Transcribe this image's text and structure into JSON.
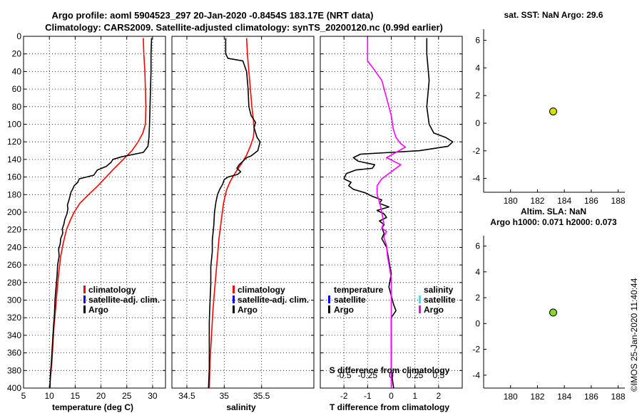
{
  "title_line1": "Argo profile: aoml 5904523_297 20-Jan-2020 -0.8454S 183.17E (NRT data)",
  "title_line2": "Climatology: CARS2009. Satellite-adjusted climatology: synTS_20200120.nc (0.99d earlier)",
  "watermark": "©IMOS 25-Jan-2020 11:40:44",
  "colors": {
    "climatology": "#ff0000",
    "satellite_adj": "#0000ff",
    "argo": "#000000",
    "salinity_diff": "#ff00ff",
    "satellite_salinity": "#00ffff",
    "sst_marker": "#d4e000",
    "sla_marker": "#88d830"
  },
  "chart_data": [
    {
      "id": "temperature",
      "type": "line",
      "xlabel": "temperature (deg C)",
      "xlim": [
        5,
        32.5
      ],
      "xticks": [
        5,
        10,
        15,
        20,
        25,
        30
      ],
      "ylim": [
        400,
        0
      ],
      "yticks": [
        0,
        20,
        40,
        60,
        80,
        100,
        120,
        140,
        160,
        180,
        200,
        220,
        240,
        260,
        280,
        300,
        320,
        340,
        360,
        380,
        400
      ],
      "legend": [
        "climatology",
        "satellite-adj. clim.",
        "Argo"
      ],
      "series": [
        {
          "name": "climatology",
          "color": "#ff0000",
          "points": [
            [
              28.2,
              2
            ],
            [
              28.3,
              20
            ],
            [
              28.5,
              40
            ],
            [
              28.6,
              60
            ],
            [
              28.7,
              80
            ],
            [
              28.6,
              100
            ],
            [
              28.1,
              110
            ],
            [
              27.2,
              120
            ],
            [
              26.0,
              130
            ],
            [
              24.3,
              140
            ],
            [
              22.6,
              150
            ],
            [
              21.0,
              160
            ],
            [
              19.4,
              170
            ],
            [
              17.6,
              180
            ],
            [
              15.9,
              190
            ],
            [
              14.8,
              200
            ],
            [
              14.0,
              210
            ],
            [
              13.3,
              220
            ],
            [
              12.7,
              235
            ],
            [
              12.2,
              250
            ],
            [
              11.8,
              270
            ],
            [
              11.5,
              290
            ],
            [
              11.2,
              310
            ],
            [
              10.9,
              330
            ],
            [
              10.7,
              350
            ],
            [
              10.5,
              370
            ],
            [
              10.2,
              390
            ],
            [
              10.1,
              400
            ]
          ]
        },
        {
          "name": "Argo",
          "color": "#000000",
          "points": [
            [
              29.8,
              2
            ],
            [
              29.7,
              20
            ],
            [
              29.7,
              40
            ],
            [
              29.6,
              60
            ],
            [
              29.5,
              80
            ],
            [
              29.4,
              100
            ],
            [
              29.3,
              115
            ],
            [
              29.1,
              125
            ],
            [
              28.2,
              132
            ],
            [
              24.0,
              137
            ],
            [
              22.3,
              140
            ],
            [
              22.0,
              143
            ],
            [
              21.0,
              148
            ],
            [
              19.3,
              152
            ],
            [
              18.6,
              158
            ],
            [
              15.8,
              162
            ],
            [
              15.5,
              166
            ],
            [
              14.8,
              170
            ],
            [
              14.5,
              174
            ],
            [
              14.2,
              177
            ],
            [
              14.0,
              182
            ],
            [
              13.8,
              186
            ],
            [
              13.5,
              192
            ],
            [
              13.6,
              196
            ],
            [
              13.4,
              202
            ],
            [
              13.0,
              208
            ],
            [
              12.8,
              214
            ],
            [
              12.5,
              219
            ],
            [
              12.6,
              224
            ],
            [
              12.2,
              230
            ],
            [
              12.1,
              236
            ],
            [
              11.8,
              242
            ],
            [
              11.9,
              250
            ],
            [
              11.6,
              260
            ],
            [
              11.5,
              272
            ],
            [
              11.3,
              285
            ],
            [
              11.1,
              300
            ],
            [
              11.0,
              315
            ],
            [
              10.8,
              330
            ],
            [
              10.6,
              350
            ],
            [
              10.4,
              370
            ],
            [
              10.2,
              385
            ],
            [
              10.1,
              400
            ]
          ]
        }
      ]
    },
    {
      "id": "salinity",
      "type": "line",
      "xlabel": "salinity",
      "xlim": [
        34.3,
        36.2
      ],
      "xticks": [
        34.5,
        35,
        35.5
      ],
      "ylim": [
        400,
        0
      ],
      "legend": [
        "climatology",
        "satellite-adj. clim.",
        "Argo"
      ],
      "series": [
        {
          "name": "climatology",
          "color": "#ff0000",
          "points": [
            [
              35.3,
              2
            ],
            [
              35.31,
              20
            ],
            [
              35.33,
              40
            ],
            [
              35.35,
              60
            ],
            [
              35.37,
              80
            ],
            [
              35.39,
              95
            ],
            [
              35.4,
              105
            ],
            [
              35.39,
              115
            ],
            [
              35.35,
              125
            ],
            [
              35.3,
              135
            ],
            [
              35.23,
              145
            ],
            [
              35.15,
              155
            ],
            [
              35.08,
              165
            ],
            [
              35.03,
              175
            ],
            [
              34.99,
              190
            ],
            [
              34.96,
              210
            ],
            [
              34.93,
              230
            ],
            [
              34.91,
              250
            ],
            [
              34.89,
              270
            ],
            [
              34.87,
              290
            ],
            [
              34.85,
              310
            ],
            [
              34.83,
              340
            ],
            [
              34.81,
              370
            ],
            [
              34.8,
              400
            ]
          ]
        },
        {
          "name": "Argo",
          "color": "#000000",
          "points": [
            [
              35.02,
              2
            ],
            [
              35.02,
              10
            ],
            [
              35.02,
              20
            ],
            [
              35.05,
              25
            ],
            [
              35.25,
              28
            ],
            [
              35.3,
              40
            ],
            [
              35.32,
              60
            ],
            [
              35.33,
              80
            ],
            [
              35.36,
              90
            ],
            [
              35.42,
              98
            ],
            [
              35.4,
              104
            ],
            [
              35.44,
              115
            ],
            [
              35.48,
              120
            ],
            [
              35.45,
              130
            ],
            [
              35.36,
              136
            ],
            [
              35.3,
              138
            ],
            [
              35.25,
              142
            ],
            [
              35.2,
              146
            ],
            [
              35.17,
              150
            ],
            [
              35.22,
              154
            ],
            [
              35.18,
              157
            ],
            [
              35.05,
              160
            ],
            [
              35.0,
              163
            ],
            [
              34.98,
              168
            ],
            [
              34.94,
              174
            ],
            [
              34.91,
              180
            ],
            [
              34.89,
              188
            ],
            [
              34.87,
              200
            ],
            [
              34.86,
              215
            ],
            [
              34.84,
              232
            ],
            [
              34.84,
              245
            ],
            [
              34.82,
              262
            ],
            [
              34.82,
              282
            ],
            [
              34.81,
              302
            ],
            [
              34.8,
              325
            ],
            [
              34.8,
              350
            ],
            [
              34.8,
              378
            ],
            [
              34.79,
              400
            ]
          ]
        }
      ]
    },
    {
      "id": "differences",
      "type": "line",
      "xlabel": "T difference from climatology",
      "xlabel_top": "S difference from climatology",
      "xlim": [
        -3,
        3
      ],
      "xticks": [
        -2,
        -1,
        0,
        1,
        2
      ],
      "xlim_salinity": [
        -0.75,
        0.75
      ],
      "xticks_salinity": [
        -0.5,
        -0.25,
        0,
        0.25,
        0.5
      ],
      "ylim": [
        400,
        0
      ],
      "legend_temperature_title": "temperature",
      "legend_salinity_title": "salinity",
      "legend_temperature": [
        "satellite",
        "Argo"
      ],
      "legend_salinity": [
        "satellite",
        "Argo"
      ],
      "series": [
        {
          "name": "T difference (Argo)",
          "color": "#000000",
          "points": [
            [
              1.5,
              2
            ],
            [
              1.5,
              20
            ],
            [
              1.6,
              50
            ],
            [
              1.5,
              80
            ],
            [
              1.6,
              100
            ],
            [
              1.8,
              110
            ],
            [
              2.3,
              115
            ],
            [
              2.6,
              120
            ],
            [
              2.4,
              125
            ],
            [
              1.2,
              130
            ],
            [
              0,
              132
            ],
            [
              -1.3,
              134
            ],
            [
              -1.6,
              138
            ],
            [
              -1.4,
              142
            ],
            [
              -0.7,
              146
            ],
            [
              -0.8,
              150
            ],
            [
              -1.5,
              152
            ],
            [
              -1.9,
              156
            ],
            [
              -2.0,
              162
            ],
            [
              -1.7,
              166
            ],
            [
              -1.8,
              170
            ],
            [
              -1.6,
              174
            ],
            [
              -1.1,
              178
            ],
            [
              -0.8,
              182
            ],
            [
              -0.4,
              186
            ],
            [
              -0.5,
              190
            ],
            [
              -0.1,
              194
            ],
            [
              -0.6,
              198
            ],
            [
              -0.3,
              202
            ],
            [
              -0.2,
              206
            ],
            [
              -0.5,
              210
            ],
            [
              -0.3,
              214
            ],
            [
              -0.4,
              218
            ],
            [
              -0.3,
              224
            ],
            [
              -0.4,
              230
            ],
            [
              -0.2,
              240
            ],
            [
              -0.1,
              255
            ],
            [
              0,
              270
            ],
            [
              -0.1,
              285
            ],
            [
              0.1,
              305
            ],
            [
              0.2,
              312
            ],
            [
              0.0,
              320
            ],
            [
              0,
              340
            ],
            [
              0,
              360
            ],
            [
              0.0,
              380
            ],
            [
              0.1,
              400
            ]
          ]
        },
        {
          "name": "S difference (Argo)",
          "color": "#ff00ff",
          "points": [
            [
              -0.25,
              2
            ],
            [
              -0.25,
              20
            ],
            [
              -0.25,
              28
            ],
            [
              -0.2,
              35
            ],
            [
              -0.1,
              50
            ],
            [
              -0.05,
              70
            ],
            [
              0.0,
              90
            ],
            [
              0.02,
              105
            ],
            [
              0.05,
              115
            ],
            [
              0.1,
              122
            ],
            [
              0.15,
              126
            ],
            [
              0.05,
              132
            ],
            [
              -0.05,
              138
            ],
            [
              0.1,
              146
            ],
            [
              0.05,
              150
            ],
            [
              -0.05,
              158
            ],
            [
              -0.1,
              162
            ],
            [
              -0.15,
              170
            ],
            [
              -0.15,
              180
            ],
            [
              -0.12,
              190
            ],
            [
              -0.1,
              200
            ],
            [
              -0.08,
              212
            ],
            [
              -0.1,
              218
            ],
            [
              -0.05,
              222
            ],
            [
              -0.08,
              228
            ],
            [
              -0.05,
              238
            ],
            [
              -0.04,
              250
            ],
            [
              -0.02,
              262
            ],
            [
              0,
              275
            ],
            [
              0,
              300
            ],
            [
              0,
              320
            ],
            [
              0,
              340
            ],
            [
              0,
              360
            ],
            [
              0,
              380
            ],
            [
              0,
              400
            ]
          ]
        }
      ]
    },
    {
      "id": "sst_position",
      "type": "scatter",
      "title": "sat. SST: NaN Argo: 29.6",
      "xlim": [
        178,
        188.5
      ],
      "xticks": [
        180,
        182,
        184,
        186,
        188
      ],
      "ylim": [
        -5,
        6.8
      ],
      "yticks": [
        -4,
        -2,
        0,
        2,
        4,
        6
      ],
      "points": [
        [
          183.17,
          0.85
        ]
      ]
    },
    {
      "id": "sla_position",
      "type": "scatter",
      "title": "Altim. SLA: NaN",
      "subtitle": "Argo h1000: 0.071 h2000: 0.073",
      "xlim": [
        178,
        188.5
      ],
      "xticks": [
        180,
        182,
        184,
        186,
        188
      ],
      "ylim": [
        -5,
        6.8
      ],
      "yticks": [
        -4,
        -2,
        0,
        2,
        4,
        6
      ],
      "points": [
        [
          183.17,
          0.85
        ]
      ]
    }
  ]
}
